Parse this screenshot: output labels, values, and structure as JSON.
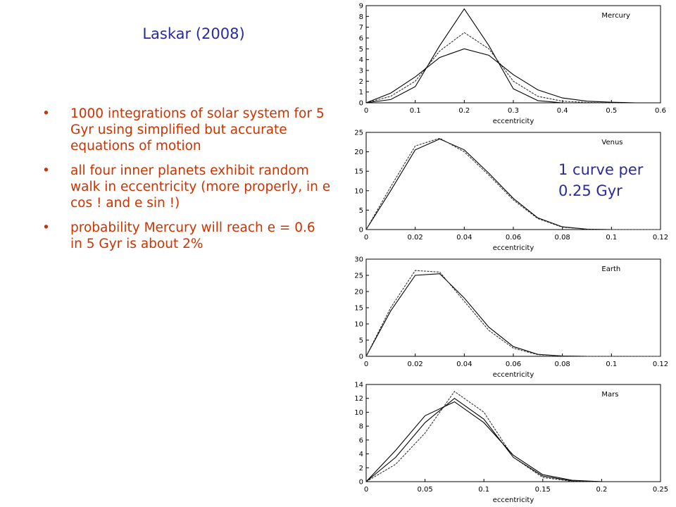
{
  "slide": {
    "title": "Laskar (2008)",
    "bullets": [
      "1000 integrations of solar system for 5 Gyr using simplified but accurate equations of motion",
      "all four inner planets exhibit random walk in eccentricity (more properly, in e cos ! and e sin !)",
      "probability Mercury will reach e = 0.6 in 5 Gyr is about 2%"
    ],
    "note": "1 curve per 0.25 Gyr"
  },
  "chart_data": [
    {
      "type": "line",
      "label": "Mercury",
      "xlabel": "eccentricity",
      "xlim": [
        0,
        0.6
      ],
      "xticks": [
        0,
        0.1,
        0.2,
        0.3,
        0.4,
        0.5,
        0.6
      ],
      "ylim": [
        0,
        9
      ],
      "yticks": [
        0,
        1,
        2,
        3,
        4,
        5,
        6,
        7,
        8,
        9
      ],
      "x": [
        0,
        0.05,
        0.1,
        0.15,
        0.2,
        0.25,
        0.3,
        0.35,
        0.4,
        0.45,
        0.5,
        0.55,
        0.6
      ],
      "series": [
        {
          "color": "#000000",
          "values": [
            0,
            0.3,
            1.5,
            5.3,
            8.7,
            5.3,
            1.3,
            0.2,
            0,
            0,
            0,
            0,
            0
          ]
        },
        {
          "color": "#333333",
          "values": [
            0,
            0.6,
            2.0,
            4.8,
            6.5,
            5.0,
            2.0,
            0.6,
            0.15,
            0.03,
            0,
            0,
            0
          ]
        },
        {
          "color": "#000000",
          "values": [
            0,
            0.9,
            2.4,
            4.2,
            5.0,
            4.4,
            2.6,
            1.2,
            0.45,
            0.15,
            0.05,
            0,
            0
          ]
        }
      ]
    },
    {
      "type": "line",
      "label": "Venus",
      "xlabel": "eccentricity",
      "xlim": [
        0,
        0.12
      ],
      "xticks": [
        0,
        0.02,
        0.04,
        0.06,
        0.08,
        0.1,
        0.12
      ],
      "ylim": [
        0,
        25
      ],
      "yticks": [
        0,
        5,
        10,
        15,
        20,
        25
      ],
      "x": [
        0,
        0.01,
        0.02,
        0.03,
        0.04,
        0.05,
        0.06,
        0.07,
        0.08,
        0.09,
        0.1,
        0.11,
        0.12
      ],
      "series": [
        {
          "color": "#000000",
          "values": [
            0,
            10,
            20.5,
            23.3,
            20.5,
            14.5,
            8,
            3,
            0.7,
            0.1,
            0,
            0,
            0
          ]
        },
        {
          "color": "#333333",
          "values": [
            0,
            11,
            21.5,
            23.5,
            20,
            14,
            7.6,
            2.8,
            0.6,
            0.1,
            0,
            0,
            0
          ]
        }
      ]
    },
    {
      "type": "line",
      "label": "Earth",
      "xlabel": "eccentricity",
      "xlim": [
        0,
        0.12
      ],
      "xticks": [
        0,
        0.02,
        0.04,
        0.06,
        0.08,
        0.1,
        0.12
      ],
      "ylim": [
        0,
        30
      ],
      "yticks": [
        0,
        5,
        10,
        15,
        20,
        25,
        30
      ],
      "x": [
        0,
        0.01,
        0.02,
        0.03,
        0.04,
        0.05,
        0.06,
        0.07,
        0.08,
        0.09,
        0.1,
        0.11,
        0.12
      ],
      "series": [
        {
          "color": "#000000",
          "values": [
            0,
            14,
            25,
            25.5,
            18,
            9,
            3,
            0.6,
            0.1,
            0,
            0,
            0,
            0
          ]
        },
        {
          "color": "#333333",
          "values": [
            0,
            15,
            26.5,
            26,
            17,
            8,
            2.5,
            0.5,
            0.1,
            0,
            0,
            0,
            0
          ]
        }
      ]
    },
    {
      "type": "line",
      "label": "Mars",
      "xlabel": "eccentricity",
      "xlim": [
        0,
        0.25
      ],
      "xticks": [
        0,
        0.05,
        0.1,
        0.15,
        0.2,
        0.25
      ],
      "ylim": [
        0,
        14
      ],
      "yticks": [
        0,
        2,
        4,
        6,
        8,
        10,
        12,
        14
      ],
      "x": [
        0,
        0.025,
        0.05,
        0.075,
        0.1,
        0.125,
        0.15,
        0.175,
        0.2,
        0.225,
        0.25
      ],
      "series": [
        {
          "color": "#000000",
          "values": [
            0,
            3.5,
            8.5,
            12,
            9,
            3.5,
            0.8,
            0.1,
            0,
            0,
            0
          ]
        },
        {
          "color": "#333333",
          "values": [
            0,
            2.5,
            7,
            13,
            10,
            3.5,
            0.6,
            0.05,
            0,
            0,
            0
          ]
        },
        {
          "color": "#000000",
          "values": [
            0,
            4.5,
            9.5,
            11.5,
            8.5,
            3.8,
            1.0,
            0.2,
            0,
            0,
            0
          ]
        }
      ]
    }
  ]
}
